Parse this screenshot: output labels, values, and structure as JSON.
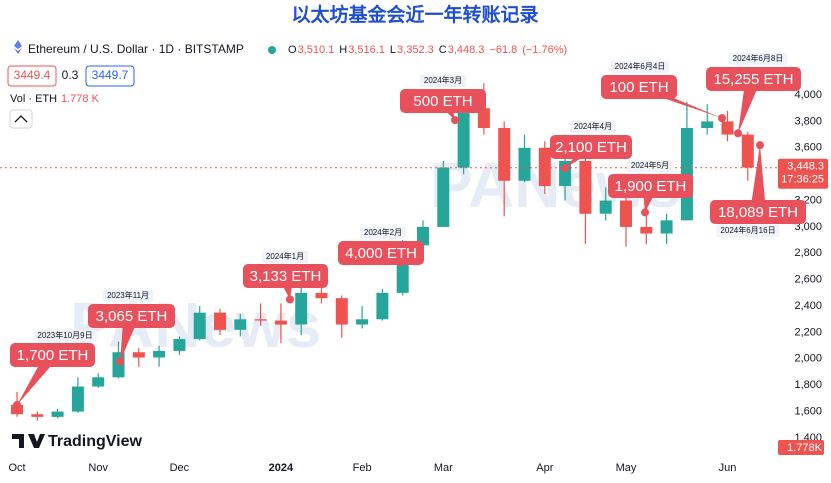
{
  "chart_data": {
    "type": "candlestick",
    "title": "以太坊基金会近一年转账记录",
    "symbol": "Ethereum / U.S. Dollar · 1D · BITSTAMP",
    "ohlc_legend": {
      "o_prefix": "O",
      "open": {
        "value": 3510.1,
        "label": "3,510.1"
      },
      "h_prefix": "H",
      "high": {
        "value": 3516.1,
        "label": "3,516.1"
      },
      "l_prefix": "L",
      "low": {
        "value": 3352.3,
        "label": "3,352.3"
      },
      "c_prefix": "C",
      "close": {
        "value": 3448.3,
        "label": "3,448.3"
      },
      "change": {
        "value": -61.8,
        "label": "−61.8"
      },
      "change_pct": {
        "value": -1.76,
        "label": "(−1.76%)"
      }
    },
    "bid": 3449.4,
    "spread": 0.3,
    "ask": 3449.7,
    "volume_label": "Vol · ETH",
    "volume": {
      "value": 1778,
      "label": "1.778 K"
    },
    "volume_tag": {
      "value": 1778,
      "label": "1.778K"
    },
    "last_price": {
      "value": 3448.3,
      "label": "3,448.3"
    },
    "countdown": "17:36:25",
    "watermark": "PANews",
    "brand": "TradingView",
    "categories": [
      "Oct",
      null,
      null,
      null,
      "Nov",
      null,
      null,
      null,
      "Dec",
      null,
      null,
      null,
      null,
      "2024",
      null,
      null,
      null,
      "Feb",
      null,
      null,
      null,
      "Mar",
      null,
      null,
      null,
      null,
      "Apr",
      null,
      null,
      null,
      "May",
      null,
      null,
      null,
      null,
      "Jun",
      null
    ],
    "open": [
      1650,
      1580,
      1560,
      1600,
      1790,
      1860,
      2050,
      2010,
      2060,
      2150,
      2350,
      2220,
      2300,
      2290,
      2260,
      2500,
      2460,
      2260,
      2300,
      2500,
      2860,
      3000,
      3450,
      3900,
      3750,
      3350,
      3600,
      3310,
      3500,
      3100,
      3200,
      3000,
      2950,
      3050,
      3750,
      3800,
      3700
    ],
    "high": [
      1750,
      1600,
      1620,
      1860,
      1890,
      2130,
      2080,
      2100,
      2170,
      2400,
      2380,
      2340,
      2420,
      2420,
      2700,
      2600,
      2480,
      2400,
      2530,
      2900,
      3050,
      3500,
      3950,
      4090,
      3800,
      3700,
      3650,
      3700,
      3550,
      3300,
      3350,
      3130,
      3100,
      3950,
      3930,
      3880,
      3720
    ],
    "low": [
      1560,
      1530,
      1550,
      1590,
      1780,
      1850,
      1940,
      1940,
      2030,
      2140,
      2180,
      2170,
      2250,
      2120,
      2180,
      2420,
      2160,
      2230,
      2290,
      2480,
      2840,
      3000,
      3400,
      3700,
      3080,
      3340,
      3250,
      3200,
      2870,
      3050,
      2850,
      2870,
      2870,
      3050,
      3700,
      3650,
      3350
    ],
    "close": [
      1580,
      1560,
      1600,
      1790,
      1860,
      2050,
      2010,
      2060,
      2150,
      2350,
      2220,
      2300,
      2290,
      2260,
      2500,
      2460,
      2260,
      2300,
      2500,
      2860,
      3000,
      3450,
      3900,
      3750,
      3350,
      3600,
      3310,
      3500,
      3100,
      3200,
      3000,
      2950,
      3050,
      3750,
      3800,
      3700,
      3450
    ],
    "up_color": "#26a69a",
    "down_color": "#ef5350",
    "ylim": [
      1233,
      4493
    ],
    "yticks": [
      {
        "value": 1400,
        "label": "1,400"
      },
      {
        "value": 1600,
        "label": "1,600"
      },
      {
        "value": 1800,
        "label": "1,800"
      },
      {
        "value": 2000,
        "label": "2,000"
      },
      {
        "value": 2200,
        "label": "2,200"
      },
      {
        "value": 2400,
        "label": "2,400"
      },
      {
        "value": 2600,
        "label": "2,600"
      },
      {
        "value": 2800,
        "label": "2,800"
      },
      {
        "value": 3000,
        "label": "3,000"
      },
      {
        "value": 3200,
        "label": "3,200"
      },
      {
        "value": 3400,
        "label": "3,400"
      },
      {
        "value": 3600,
        "label": "3,600"
      },
      {
        "value": 3800,
        "label": "3,800"
      },
      {
        "value": 4000,
        "label": "4,000"
      }
    ],
    "annotation_color": "#e8505b",
    "annotations": [
      {
        "label": "1,700 ETH",
        "date": "2023年10月9日",
        "price": 1650
      },
      {
        "label": "3,065 ETH",
        "date": "2023年11月",
        "price": 1980
      },
      {
        "label": "3,133 ETH",
        "date": "2024年1月",
        "price": 2450
      },
      {
        "label": "4,000 ETH",
        "date": "2024年2月",
        "price": 2733
      },
      {
        "label": "500 ETH",
        "date": "2024年3月",
        "price": 3810
      },
      {
        "label": "2,100 ETH",
        "date": "2024年4月",
        "price": 3445
      },
      {
        "label": "1,900 ETH",
        "date": "2024年5月",
        "price": 3110
      },
      {
        "label": "100 ETH",
        "date": "2024年6月4日",
        "price": 3825
      },
      {
        "label": "15,255 ETH",
        "date": "2024年6月8日",
        "price": 3710
      },
      {
        "label": "18,089 ETH",
        "date": "2024年6月16日",
        "price": 3620
      }
    ]
  }
}
